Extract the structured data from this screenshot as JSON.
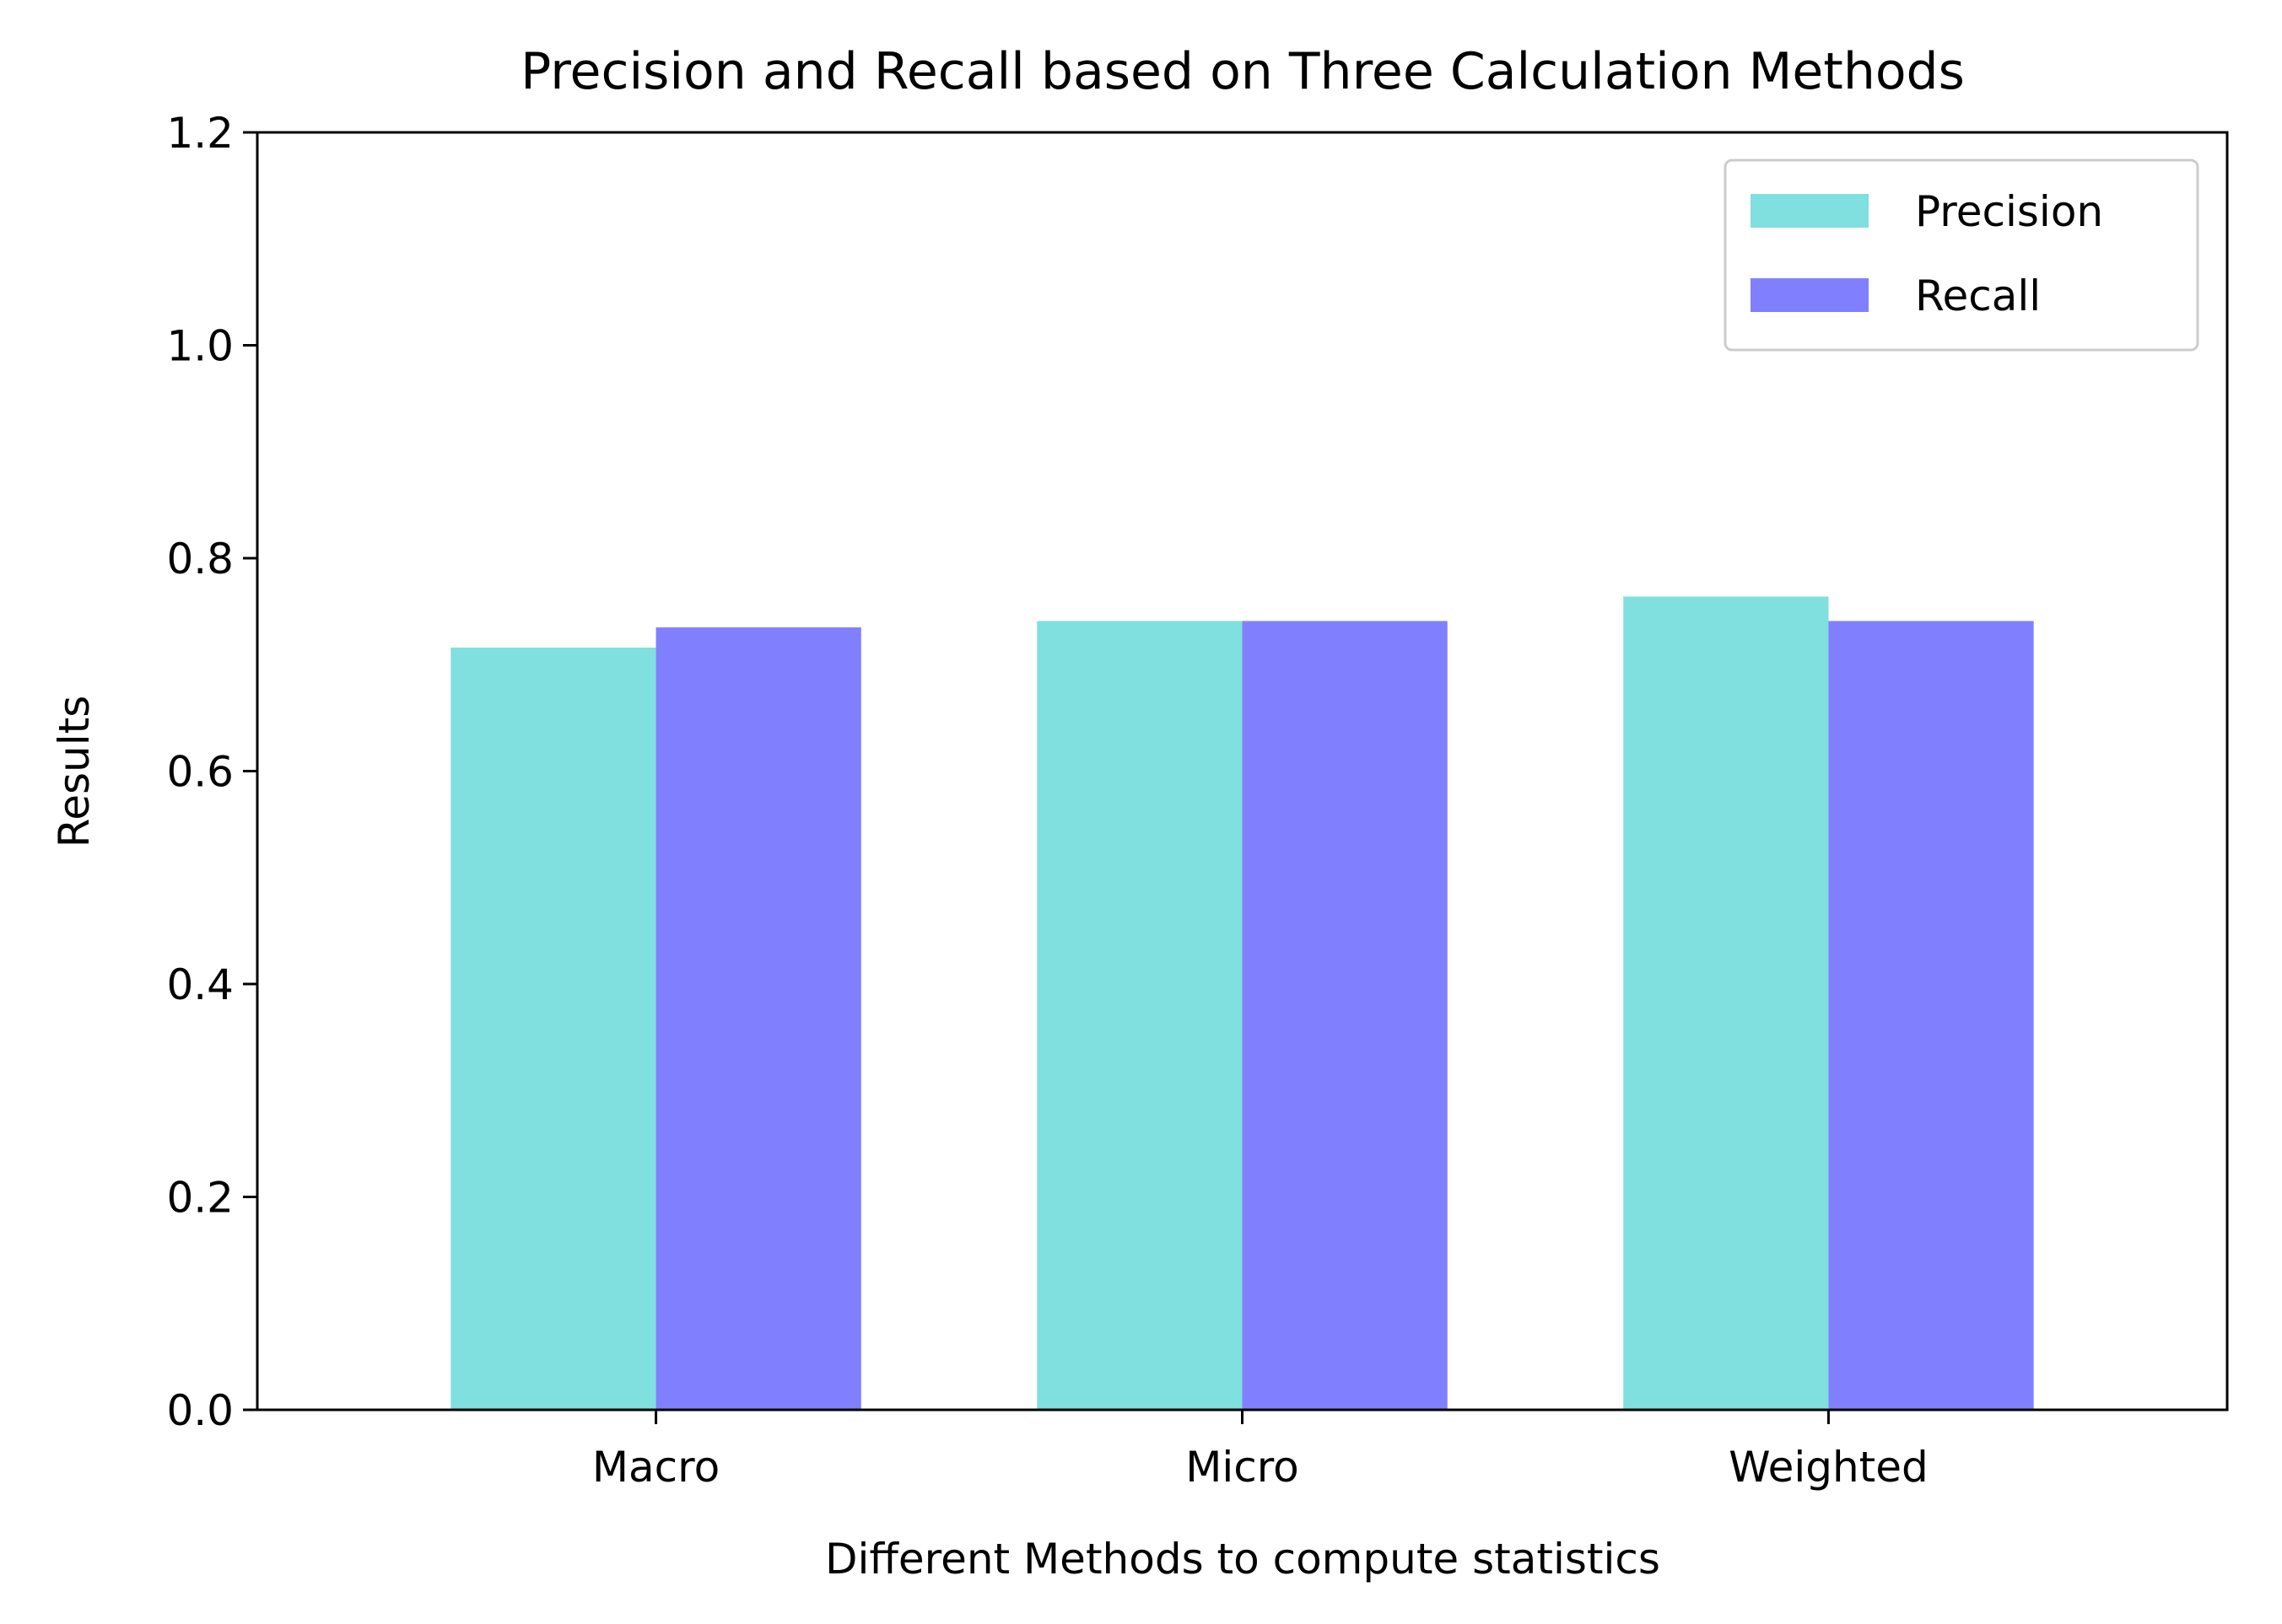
{
  "chart_data": {
    "type": "bar",
    "title": "Precision and Recall based on Three Calculation Methods",
    "xlabel": "Different Methods to compute statistics",
    "ylabel": "Results",
    "categories": [
      "Macro",
      "Micro",
      "Weighted"
    ],
    "series": [
      {
        "name": "Precision",
        "values": [
          0.716,
          0.741,
          0.764
        ],
        "color": "#80DFDF"
      },
      {
        "name": "Recall",
        "values": [
          0.735,
          0.741,
          0.741
        ],
        "color": "#8080FF"
      }
    ],
    "ylim": [
      0,
      1.2
    ],
    "yticks": [
      "0.0",
      "0.2",
      "0.4",
      "0.6",
      "0.8",
      "1.0",
      "1.2"
    ],
    "grid": false,
    "legend_position": "top-right"
  }
}
